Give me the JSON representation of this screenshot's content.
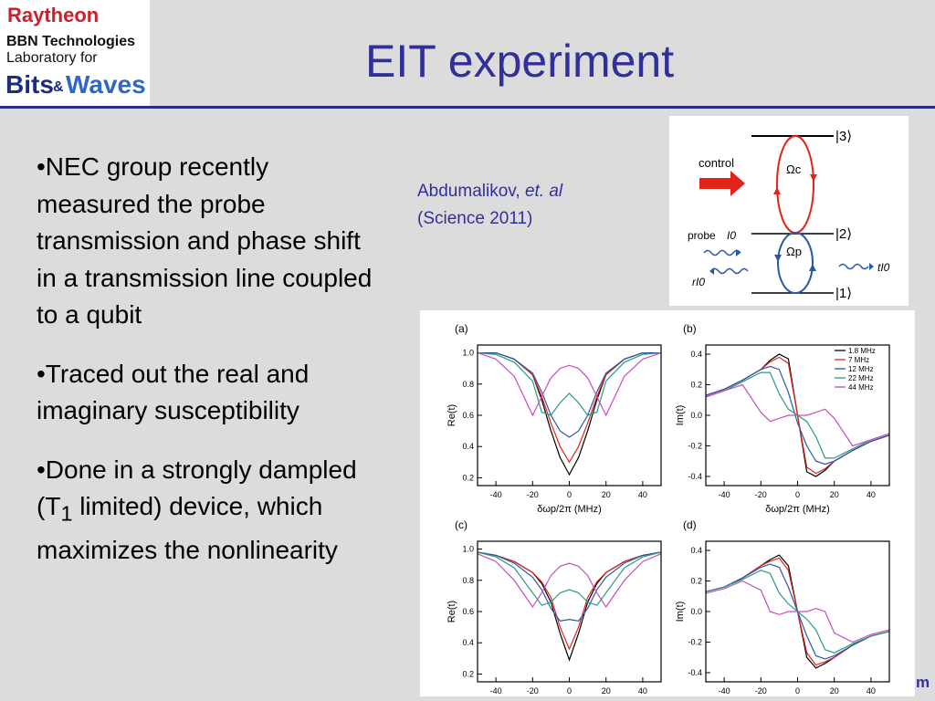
{
  "logo": {
    "line1": "Raytheon",
    "line2": "BBN Technologies",
    "line3": "Laboratory for",
    "line4a": "Bits",
    "line4b": "&",
    "line4c": "Waves"
  },
  "title": "EIT experiment",
  "bullets": [
    {
      "text": "•NEC group recently measured the probe transmission and phase shift in a transmission line coupled to a qubit"
    },
    {
      "text": "•Traced out the real and imaginary susceptibility"
    },
    {
      "pre": "•Done in a strongly dampled (T",
      "sub": "1",
      "post": " limited) device, which maximizes the nonlinearity"
    }
  ],
  "citation": {
    "author": "Abdumalikov, ",
    "etal": "et. al",
    "source": "(Science 2011)"
  },
  "diagram": {
    "level3": "|3⟩",
    "level2": "|2⟩",
    "level1": "|1⟩",
    "control": "control",
    "omega_c": "Ωc",
    "omega_p": "Ωp",
    "probe": "probe",
    "probe_i0": "I0",
    "reflect": "rI0",
    "transmit": "tI0"
  },
  "colors": {
    "title": "#31309a",
    "rule": "#2a2c8a",
    "s1_8": "#000000",
    "s7": "#e2231a",
    "s12": "#2b58a6",
    "s22": "#2a9a8a",
    "s44": "#c64fb9"
  },
  "footer_fragment": "m",
  "chart_data": [
    {
      "type": "line",
      "panel_label": "(a)",
      "xlabel": "δωp/2π (MHz)",
      "ylabel": "Re(t)",
      "xlim": [
        -50,
        50
      ],
      "ylim": [
        0.15,
        1.05
      ],
      "xticks": [
        -40,
        -20,
        0,
        20,
        40
      ],
      "yticks": [
        0.2,
        0.4,
        0.6,
        0.8,
        1.0
      ],
      "x": [
        -50,
        -40,
        -30,
        -20,
        -15,
        -10,
        -5,
        0,
        5,
        10,
        15,
        20,
        30,
        40,
        50
      ],
      "series": [
        {
          "color_key": "s1_8",
          "values": [
            1.0,
            1.0,
            0.96,
            0.86,
            0.7,
            0.5,
            0.33,
            0.22,
            0.33,
            0.5,
            0.7,
            0.86,
            0.96,
            1.0,
            1.0
          ]
        },
        {
          "color_key": "s7",
          "values": [
            1.0,
            1.0,
            0.96,
            0.86,
            0.72,
            0.55,
            0.4,
            0.3,
            0.4,
            0.55,
            0.72,
            0.86,
            0.96,
            1.0,
            1.0
          ]
        },
        {
          "color_key": "s12",
          "values": [
            1.0,
            1.0,
            0.96,
            0.87,
            0.75,
            0.6,
            0.5,
            0.46,
            0.5,
            0.6,
            0.75,
            0.87,
            0.96,
            1.0,
            1.0
          ]
        },
        {
          "color_key": "s22",
          "values": [
            1.0,
            0.99,
            0.94,
            0.82,
            0.62,
            0.6,
            0.68,
            0.74,
            0.68,
            0.6,
            0.62,
            0.82,
            0.94,
            0.99,
            1.0
          ]
        },
        {
          "color_key": "s44",
          "values": [
            1.0,
            0.96,
            0.85,
            0.6,
            0.72,
            0.84,
            0.9,
            0.92,
            0.9,
            0.84,
            0.72,
            0.6,
            0.85,
            0.96,
            1.0
          ]
        }
      ]
    },
    {
      "type": "line",
      "panel_label": "(b)",
      "xlabel": "δωp/2π (MHz)",
      "ylabel": "Im(t)",
      "xlim": [
        -50,
        50
      ],
      "ylim": [
        -0.46,
        0.46
      ],
      "xticks": [
        -40,
        -20,
        0,
        20,
        40
      ],
      "yticks": [
        0.4,
        0.2,
        0.0,
        -0.2,
        -0.4
      ],
      "legend_position": "top-right",
      "x": [
        -50,
        -40,
        -30,
        -20,
        -15,
        -10,
        -5,
        0,
        5,
        10,
        15,
        20,
        30,
        40,
        50
      ],
      "series": [
        {
          "name": "1.8 MHz",
          "color_key": "s1_8",
          "values": [
            0.13,
            0.17,
            0.23,
            0.3,
            0.36,
            0.4,
            0.37,
            0.0,
            -0.37,
            -0.4,
            -0.36,
            -0.3,
            -0.23,
            -0.17,
            -0.13
          ]
        },
        {
          "name": "7 MHz",
          "color_key": "s7",
          "values": [
            0.13,
            0.17,
            0.23,
            0.3,
            0.35,
            0.38,
            0.34,
            0.0,
            -0.34,
            -0.38,
            -0.35,
            -0.3,
            -0.23,
            -0.17,
            -0.13
          ]
        },
        {
          "name": "12 MHz",
          "color_key": "s12",
          "values": [
            0.13,
            0.17,
            0.23,
            0.3,
            0.32,
            0.3,
            0.15,
            -0.05,
            -0.2,
            -0.3,
            -0.32,
            -0.3,
            -0.23,
            -0.17,
            -0.13
          ]
        },
        {
          "name": "22 MHz",
          "color_key": "s22",
          "values": [
            0.12,
            0.16,
            0.22,
            0.28,
            0.28,
            0.14,
            0.04,
            0.0,
            -0.04,
            -0.14,
            -0.28,
            -0.28,
            -0.22,
            -0.16,
            -0.12
          ]
        },
        {
          "name": "44 MHz",
          "color_key": "s44",
          "values": [
            0.12,
            0.16,
            0.2,
            0.02,
            -0.04,
            -0.02,
            0.0,
            0.0,
            0.0,
            0.02,
            0.04,
            -0.02,
            -0.2,
            -0.16,
            -0.12
          ]
        }
      ]
    },
    {
      "type": "line",
      "panel_label": "(c)",
      "xlabel": "δωp/2π (MHz)",
      "ylabel": "Re(t)",
      "xlim": [
        -50,
        50
      ],
      "ylim": [
        0.15,
        1.05
      ],
      "xticks": [
        -40,
        -20,
        0,
        20,
        40
      ],
      "yticks": [
        0.2,
        0.4,
        0.6,
        0.8,
        1.0
      ],
      "x": [
        -50,
        -40,
        -30,
        -20,
        -15,
        -10,
        -5,
        0,
        5,
        10,
        15,
        20,
        30,
        40,
        50
      ],
      "series": [
        {
          "color_key": "s1_8",
          "values": [
            0.98,
            0.96,
            0.92,
            0.85,
            0.78,
            0.66,
            0.46,
            0.29,
            0.46,
            0.66,
            0.78,
            0.85,
            0.92,
            0.96,
            0.98
          ]
        },
        {
          "color_key": "s7",
          "values": [
            0.98,
            0.96,
            0.92,
            0.85,
            0.79,
            0.69,
            0.5,
            0.36,
            0.5,
            0.69,
            0.79,
            0.85,
            0.92,
            0.96,
            0.98
          ]
        },
        {
          "color_key": "s12",
          "values": [
            0.98,
            0.96,
            0.91,
            0.82,
            0.74,
            0.62,
            0.54,
            0.55,
            0.54,
            0.62,
            0.74,
            0.82,
            0.91,
            0.96,
            0.98
          ]
        },
        {
          "color_key": "s22",
          "values": [
            0.98,
            0.95,
            0.88,
            0.72,
            0.64,
            0.66,
            0.72,
            0.74,
            0.72,
            0.66,
            0.64,
            0.72,
            0.88,
            0.95,
            0.98
          ]
        },
        {
          "color_key": "s44",
          "values": [
            0.97,
            0.92,
            0.8,
            0.63,
            0.72,
            0.83,
            0.89,
            0.91,
            0.89,
            0.83,
            0.72,
            0.63,
            0.8,
            0.92,
            0.97
          ]
        }
      ]
    },
    {
      "type": "line",
      "panel_label": "(d)",
      "xlabel": "δωp/2π (MHz)",
      "ylabel": "Im(t)",
      "xlim": [
        -50,
        50
      ],
      "ylim": [
        -0.46,
        0.46
      ],
      "xticks": [
        -40,
        -20,
        0,
        20,
        40
      ],
      "yticks": [
        0.4,
        0.2,
        0.0,
        -0.2,
        -0.4
      ],
      "x": [
        -50,
        -40,
        -30,
        -20,
        -15,
        -10,
        -5,
        0,
        5,
        10,
        15,
        20,
        30,
        40,
        50
      ],
      "series": [
        {
          "color_key": "s1_8",
          "values": [
            0.13,
            0.16,
            0.22,
            0.3,
            0.34,
            0.37,
            0.3,
            0.0,
            -0.3,
            -0.37,
            -0.34,
            -0.3,
            -0.22,
            -0.16,
            -0.13
          ]
        },
        {
          "color_key": "s7",
          "values": [
            0.13,
            0.16,
            0.22,
            0.3,
            0.33,
            0.35,
            0.27,
            0.0,
            -0.27,
            -0.35,
            -0.33,
            -0.3,
            -0.22,
            -0.16,
            -0.13
          ]
        },
        {
          "color_key": "s12",
          "values": [
            0.13,
            0.16,
            0.22,
            0.29,
            0.31,
            0.29,
            0.16,
            0.0,
            -0.16,
            -0.29,
            -0.31,
            -0.29,
            -0.22,
            -0.16,
            -0.13
          ]
        },
        {
          "color_key": "s22",
          "values": [
            0.13,
            0.16,
            0.21,
            0.27,
            0.25,
            0.12,
            0.05,
            0.0,
            -0.05,
            -0.12,
            -0.25,
            -0.27,
            -0.21,
            -0.16,
            -0.13
          ]
        },
        {
          "color_key": "s44",
          "values": [
            0.12,
            0.15,
            0.2,
            0.14,
            0.0,
            -0.02,
            0.0,
            0.0,
            0.0,
            0.02,
            0.0,
            -0.14,
            -0.2,
            -0.15,
            -0.12
          ]
        }
      ]
    }
  ]
}
